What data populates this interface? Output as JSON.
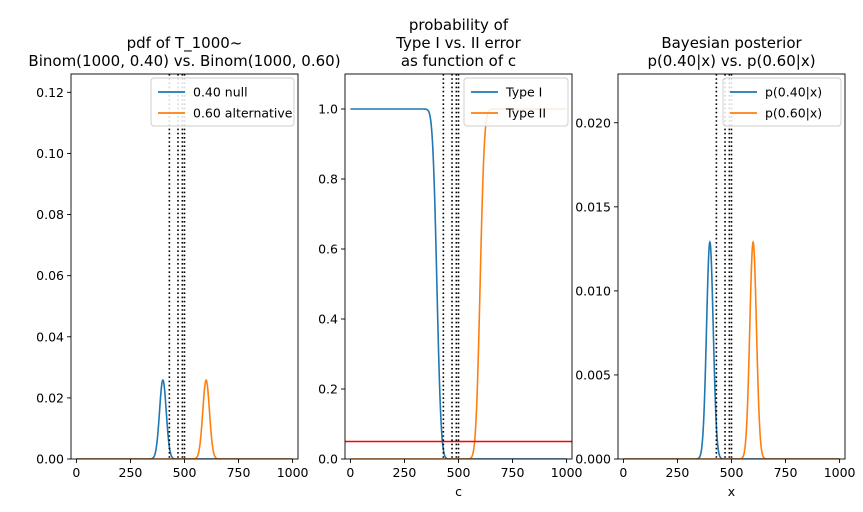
{
  "chart_data": [
    {
      "type": "line",
      "title_lines": [
        "pdf of T_1000~",
        "Binom(1000, 0.40) vs. Binom(1000, 0.60)"
      ],
      "xlabel": "",
      "ylabel": "",
      "xlim": [
        -25,
        1025
      ],
      "ylim": [
        0,
        0.126
      ],
      "xticks": [
        0,
        250,
        500,
        750,
        1000
      ],
      "xtick_labels": [
        "0",
        "250",
        "500",
        "750",
        "1000"
      ],
      "yticks": [
        0,
        0.02,
        0.04,
        0.06,
        0.08,
        0.1,
        0.12
      ],
      "ytick_labels": [
        "0.00",
        "0.02",
        "0.04",
        "0.06",
        "0.08",
        "0.10",
        "0.12"
      ],
      "legend_position": "top-right",
      "series": [
        {
          "name": "0.40 null",
          "color": "#1f77b4",
          "kind": "gauss",
          "mu": 400,
          "sigma": 15.49,
          "peak": 0.0258
        },
        {
          "name": "0.60 alternative",
          "color": "#ff7f0e",
          "kind": "gauss",
          "mu": 600,
          "sigma": 15.49,
          "peak": 0.0258
        }
      ],
      "vlines": [
        430,
        470,
        490,
        500
      ],
      "vline_color": "#000000"
    },
    {
      "type": "line",
      "title_lines": [
        "probability of",
        "Type I vs. II error",
        "as function of c"
      ],
      "xlabel": "c",
      "ylabel": "",
      "xlim": [
        -25,
        1025
      ],
      "ylim": [
        0,
        1.1
      ],
      "xticks": [
        0,
        250,
        500,
        750,
        1000
      ],
      "xtick_labels": [
        "0",
        "250",
        "500",
        "750",
        "1000"
      ],
      "yticks": [
        0,
        0.2,
        0.4,
        0.6,
        0.8,
        1.0
      ],
      "ytick_labels": [
        "0.0",
        "0.2",
        "0.4",
        "0.6",
        "0.8",
        "1.0"
      ],
      "legend_position": "top-right",
      "series": [
        {
          "name": "Type I",
          "color": "#1f77b4",
          "kind": "sf",
          "mu": 400,
          "sigma": 15.49
        },
        {
          "name": "Type II",
          "color": "#ff7f0e",
          "kind": "cdf",
          "mu": 600,
          "sigma": 15.49
        }
      ],
      "hline": {
        "y": 0.05,
        "color": "#ff0000"
      },
      "vlines": [
        430,
        470,
        490,
        500
      ],
      "vline_color": "#000000"
    },
    {
      "type": "line",
      "title_lines": [
        "Bayesian posterior",
        "p(0.40|x) vs. p(0.60|x)"
      ],
      "xlabel": "x",
      "ylabel": "",
      "xlim": [
        -25,
        1025
      ],
      "ylim": [
        0,
        0.0229
      ],
      "xticks": [
        0,
        250,
        500,
        750,
        1000
      ],
      "xtick_labels": [
        "0",
        "250",
        "500",
        "750",
        "1000"
      ],
      "yticks": [
        0,
        0.005,
        0.01,
        0.015,
        0.02
      ],
      "ytick_labels": [
        "0.000",
        "0.005",
        "0.010",
        "0.015",
        "0.020"
      ],
      "legend_position": "top-right",
      "series": [
        {
          "name": "p(0.40|x)",
          "color": "#1f77b4",
          "kind": "gauss",
          "mu": 400,
          "sigma": 15.49,
          "peak": 0.0129
        },
        {
          "name": "p(0.60|x)",
          "color": "#ff7f0e",
          "kind": "gauss",
          "mu": 600,
          "sigma": 15.49,
          "peak": 0.0129
        }
      ],
      "vlines": [
        430,
        470,
        490,
        500
      ],
      "vline_color": "#000000"
    }
  ]
}
